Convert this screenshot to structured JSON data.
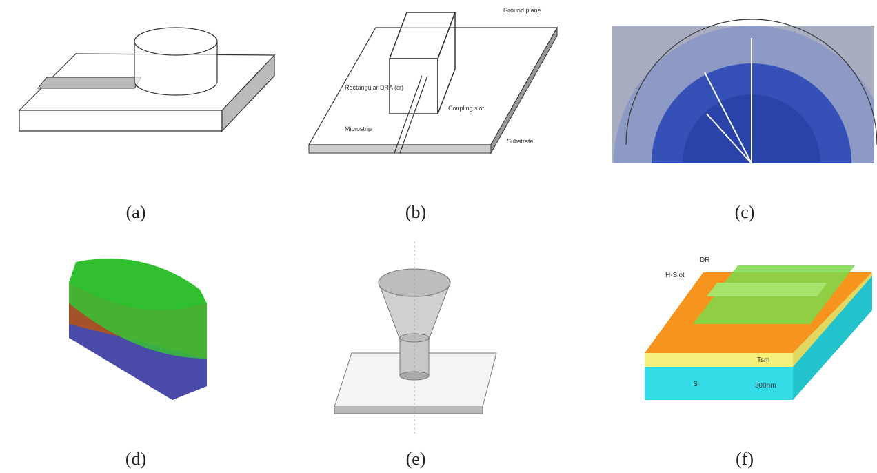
{
  "panels": [
    {
      "caption": "(a)"
    },
    {
      "caption": "(b)",
      "labels": [
        "Ground plane",
        "Rectangular DRA (εr)",
        "Coupling slot",
        "Microstrip",
        "Substrate"
      ]
    },
    {
      "caption": "(c)"
    },
    {
      "caption": "(d)"
    },
    {
      "caption": "(e)"
    },
    {
      "caption": "(f)",
      "labels": [
        "DR",
        "H-Slot",
        "Tsm",
        "Si",
        "300nm"
      ]
    }
  ]
}
